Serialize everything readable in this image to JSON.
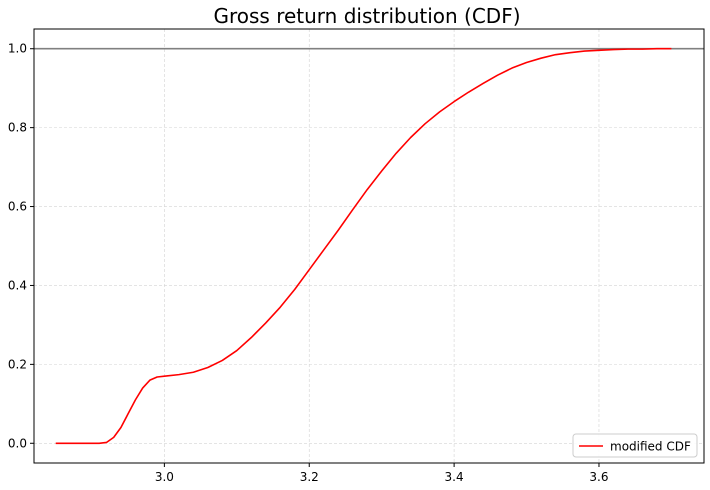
{
  "chart_data": {
    "type": "line",
    "title": "Gross return distribution (CDF)",
    "xlabel": "",
    "ylabel": "",
    "xlim": [
      2.82,
      3.745
    ],
    "ylim": [
      -0.05,
      1.05
    ],
    "xticks": [
      3.0,
      3.2,
      3.4,
      3.6
    ],
    "xtick_labels": [
      "3.0",
      "3.2",
      "3.4",
      "3.6"
    ],
    "yticks": [
      0.0,
      0.2,
      0.4,
      0.6,
      0.8,
      1.0
    ],
    "ytick_labels": [
      "0.0",
      "0.2",
      "0.4",
      "0.6",
      "0.8",
      "1.0"
    ],
    "grid": true,
    "legend_position": "bottom-right",
    "hline": {
      "y": 1.0,
      "color": "#808080"
    },
    "series": [
      {
        "name": "modified CDF",
        "color": "#ff0000",
        "x": [
          2.85,
          2.88,
          2.91,
          2.92,
          2.93,
          2.94,
          2.95,
          2.96,
          2.97,
          2.98,
          2.99,
          3.0,
          3.02,
          3.04,
          3.06,
          3.08,
          3.1,
          3.12,
          3.14,
          3.16,
          3.18,
          3.2,
          3.22,
          3.24,
          3.26,
          3.28,
          3.3,
          3.32,
          3.34,
          3.36,
          3.38,
          3.4,
          3.42,
          3.44,
          3.46,
          3.48,
          3.5,
          3.52,
          3.54,
          3.56,
          3.58,
          3.6,
          3.62,
          3.64,
          3.66,
          3.68,
          3.7
        ],
        "y": [
          0.0,
          0.0,
          0.0,
          0.002,
          0.015,
          0.04,
          0.075,
          0.11,
          0.14,
          0.16,
          0.168,
          0.17,
          0.174,
          0.18,
          0.192,
          0.21,
          0.235,
          0.268,
          0.305,
          0.345,
          0.39,
          0.44,
          0.49,
          0.54,
          0.592,
          0.643,
          0.69,
          0.735,
          0.775,
          0.81,
          0.84,
          0.866,
          0.89,
          0.912,
          0.933,
          0.951,
          0.965,
          0.976,
          0.985,
          0.99,
          0.994,
          0.996,
          0.998,
          0.999,
          0.999,
          1.0,
          1.0
        ]
      }
    ]
  }
}
